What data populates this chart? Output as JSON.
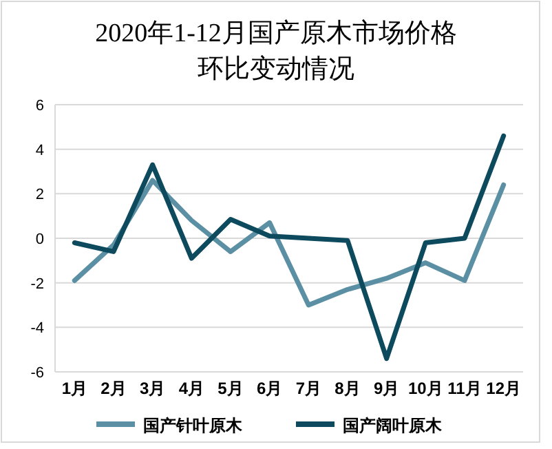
{
  "chart_data": {
    "type": "line",
    "title": "2020年1-12月国产原木市场价格环比变动情况",
    "categories": [
      "1月",
      "2月",
      "3月",
      "4月",
      "5月",
      "6月",
      "7月",
      "8月",
      "9月",
      "10月",
      "11月",
      "12月"
    ],
    "series": [
      {
        "name": "国产针叶原木",
        "color": "#5b8fa3",
        "values": [
          -1.9,
          -0.3,
          2.6,
          0.8,
          -0.6,
          0.7,
          -3.0,
          -2.3,
          -1.8,
          -1.1,
          -1.9,
          2.4
        ]
      },
      {
        "name": "国产阔叶原木",
        "color": "#0d4a5e",
        "values": [
          -0.2,
          -0.6,
          3.3,
          -0.9,
          0.85,
          0.1,
          0.0,
          -0.1,
          -5.4,
          -0.2,
          0.0,
          4.6
        ]
      }
    ],
    "ylim": [
      -6,
      6
    ],
    "yticks": [
      -6,
      -4,
      -2,
      0,
      2,
      4,
      6
    ],
    "grid": "y",
    "legend": "bottom",
    "marker": "none",
    "line_style": "solid"
  }
}
